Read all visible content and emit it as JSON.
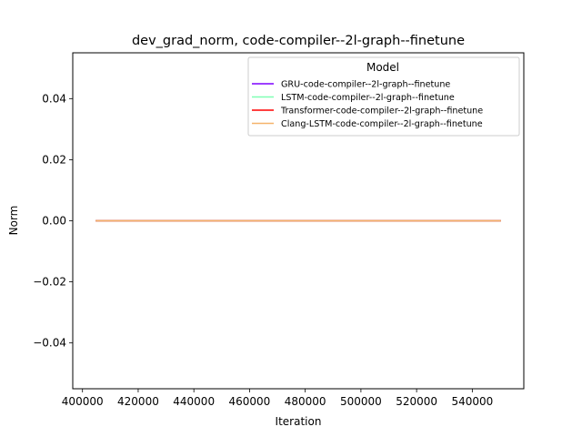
{
  "chart_data": {
    "type": "line",
    "title": "dev_grad_norm, code-compiler--2l-graph--finetune",
    "xlabel": "Iteration",
    "ylabel": "Norm",
    "xlim": [
      396500,
      558500
    ],
    "ylim": [
      -0.055,
      0.055
    ],
    "xticks": [
      400000,
      420000,
      440000,
      460000,
      480000,
      500000,
      520000,
      540000
    ],
    "xtick_labels": [
      "400000",
      "420000",
      "440000",
      "460000",
      "480000",
      "500000",
      "520000",
      "540000"
    ],
    "yticks": [
      0.04,
      0.02,
      0.0,
      -0.02,
      -0.04
    ],
    "ytick_labels": [
      "0.04",
      "0.02",
      "0.00",
      "−0.02",
      "−0.04"
    ],
    "grid": false,
    "legend": {
      "title": "Model",
      "placement": "top-right"
    },
    "series": [
      {
        "name": "GRU-code-compiler--2l-graph--finetune",
        "color": "#7f00ff",
        "x": [
          405000,
          550000
        ],
        "y": [
          0.0,
          0.0
        ]
      },
      {
        "name": "LSTM-code-compiler--2l-graph--finetune",
        "color": "#80ffb4",
        "x": [
          405000,
          550000
        ],
        "y": [
          0.0,
          0.0
        ]
      },
      {
        "name": "Transformer-code-compiler--2l-graph--finetune",
        "color": "#ff0000",
        "x": [
          405000,
          550000
        ],
        "y": [
          0.0,
          0.0
        ]
      },
      {
        "name": "Clang-LSTM-code-compiler--2l-graph--finetune",
        "color": "#f5b36b",
        "x": [
          405000,
          550000
        ],
        "y": [
          0.0,
          0.0
        ]
      }
    ]
  }
}
